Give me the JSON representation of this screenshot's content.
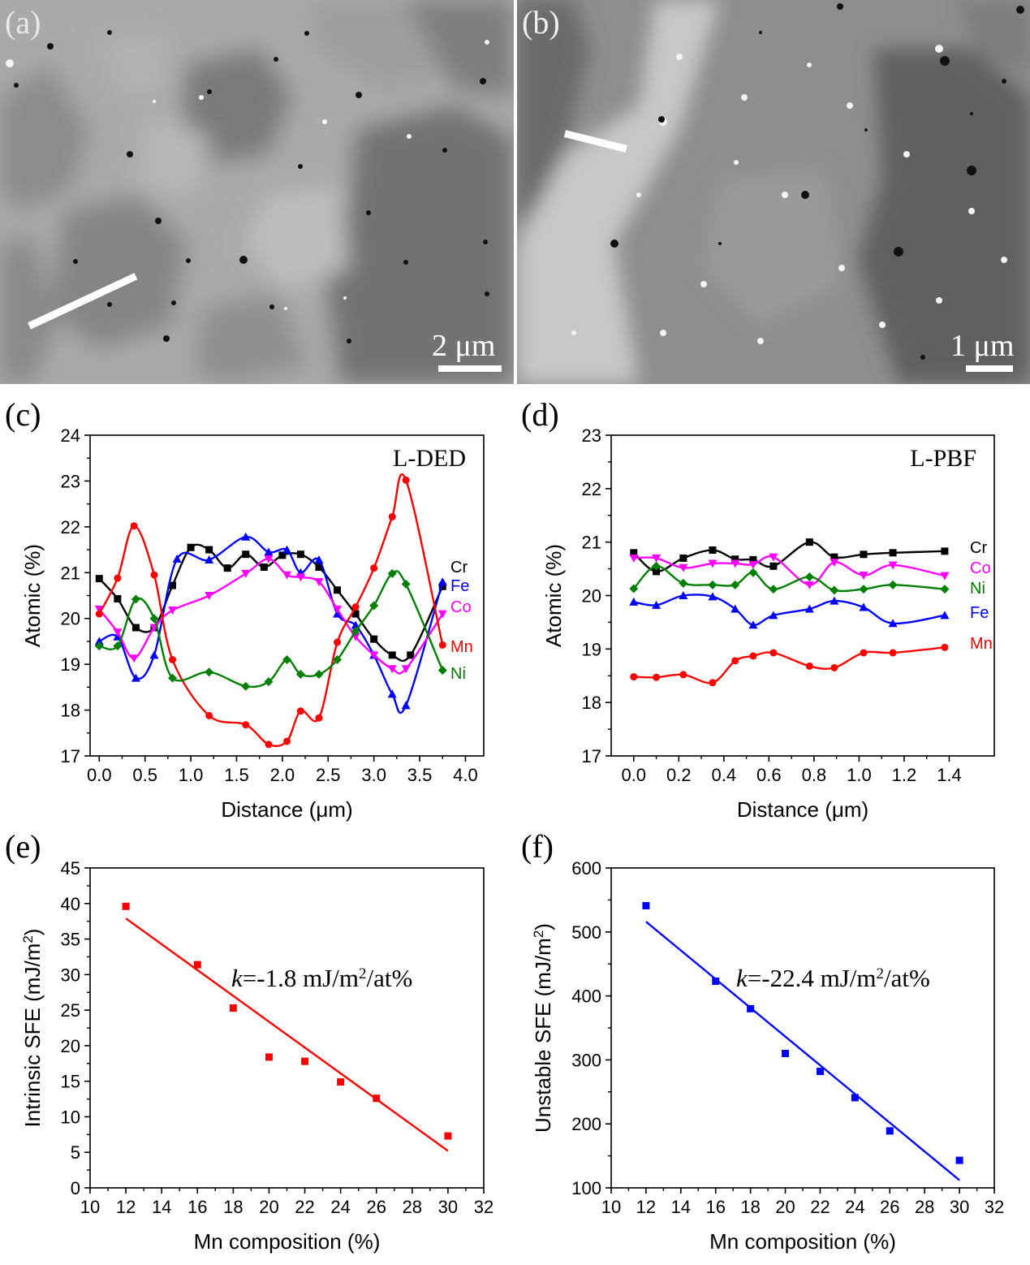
{
  "panels": {
    "a": {
      "letter": "(a)",
      "scale_label": "2 μm"
    },
    "b": {
      "letter": "(b)",
      "scale_label": "1 μm"
    },
    "c": {
      "letter": "(c)"
    },
    "d": {
      "letter": "(d)"
    },
    "e": {
      "letter": "(e)"
    },
    "f": {
      "letter": "(f)"
    }
  },
  "colors": {
    "Cr": "#000000",
    "Fe": "#0000ff",
    "Co": "#ff00ff",
    "Mn": "#ff0000",
    "Ni": "#008000",
    "e_series": "#ff0000",
    "f_series": "#0000ff"
  },
  "chart_data": [
    {
      "id": "c",
      "type": "line",
      "annotation": "L-DED",
      "xlabel": "Distance (μm)",
      "ylabel": "Atomic (%)",
      "xlim": [
        -0.1,
        4.2
      ],
      "ylim": [
        17,
        24
      ],
      "xticks": [
        "0.0",
        "0.5",
        "1.0",
        "1.5",
        "2.0",
        "2.5",
        "3.0",
        "3.5",
        "4.0"
      ],
      "yticks": [
        "17",
        "18",
        "19",
        "20",
        "21",
        "22",
        "23",
        "24"
      ],
      "grid": false,
      "legend": "right-side labels",
      "series": [
        {
          "name": "Cr",
          "marker": "square",
          "x": [
            0,
            0.2,
            0.4,
            0.6,
            0.8,
            1.0,
            1.2,
            1.4,
            1.6,
            1.8,
            2.0,
            2.2,
            2.4,
            2.6,
            2.8,
            3.0,
            3.2,
            3.4,
            3.75
          ],
          "values": [
            20.87,
            20.43,
            19.8,
            19.8,
            20.72,
            21.55,
            21.5,
            21.1,
            21.4,
            21.12,
            21.38,
            21.4,
            21.12,
            20.62,
            20.1,
            19.55,
            19.2,
            19.2,
            20.7
          ]
        },
        {
          "name": "Fe",
          "marker": "triangle-up",
          "x": [
            0,
            0.2,
            0.4,
            0.6,
            0.85,
            1.2,
            1.6,
            1.85,
            2.05,
            2.2,
            2.4,
            2.6,
            2.8,
            3.0,
            3.2,
            3.35,
            3.75
          ],
          "values": [
            19.5,
            19.6,
            18.7,
            19.2,
            21.3,
            21.28,
            21.78,
            21.45,
            21.5,
            21.0,
            21.28,
            20.1,
            19.85,
            19.2,
            18.35,
            18.1,
            20.8
          ]
        },
        {
          "name": "Co",
          "marker": "triangle-down",
          "x": [
            0,
            0.2,
            0.38,
            0.6,
            0.8,
            1.2,
            1.6,
            1.85,
            2.05,
            2.2,
            2.4,
            2.6,
            2.8,
            3.0,
            3.2,
            3.35,
            3.75
          ],
          "values": [
            20.2,
            19.7,
            19.13,
            19.8,
            20.18,
            20.5,
            20.98,
            21.3,
            20.95,
            20.9,
            20.8,
            20.2,
            19.6,
            19.2,
            18.9,
            18.9,
            20.1
          ]
        },
        {
          "name": "Mn",
          "marker": "circle",
          "x": [
            0,
            0.2,
            0.38,
            0.6,
            0.8,
            1.2,
            1.6,
            1.85,
            2.05,
            2.2,
            2.4,
            2.6,
            2.8,
            3.0,
            3.2,
            3.35,
            3.75
          ],
          "values": [
            20.1,
            20.88,
            22.02,
            20.95,
            19.1,
            17.88,
            17.68,
            17.25,
            17.32,
            17.98,
            17.83,
            19.48,
            20.25,
            21.1,
            22.22,
            23.02,
            19.42
          ]
        },
        {
          "name": "Ni",
          "marker": "diamond",
          "x": [
            0,
            0.2,
            0.4,
            0.6,
            0.8,
            1.2,
            1.6,
            1.85,
            2.05,
            2.2,
            2.4,
            2.6,
            2.8,
            3.0,
            3.2,
            3.35,
            3.75
          ],
          "values": [
            19.4,
            19.4,
            20.42,
            20.0,
            18.7,
            18.83,
            18.52,
            18.62,
            19.1,
            18.78,
            18.78,
            19.1,
            19.72,
            20.28,
            20.98,
            20.75,
            18.87
          ]
        }
      ]
    },
    {
      "id": "d",
      "type": "line",
      "annotation": "L-PBF",
      "xlabel": "Distance (μm)",
      "ylabel": "Atomic (%)",
      "xlim": [
        -0.1,
        1.6
      ],
      "ylim": [
        17,
        23
      ],
      "xticks": [
        "0.0",
        "0.2",
        "0.4",
        "0.6",
        "0.8",
        "1.0",
        "1.2",
        "1.4"
      ],
      "yticks": [
        "17",
        "18",
        "19",
        "20",
        "21",
        "22",
        "23"
      ],
      "grid": false,
      "legend": "right-side labels",
      "series": [
        {
          "name": "Cr",
          "marker": "square",
          "x": [
            0,
            0.1,
            0.22,
            0.35,
            0.45,
            0.53,
            0.62,
            0.78,
            0.89,
            1.02,
            1.15,
            1.38
          ],
          "values": [
            20.8,
            20.45,
            20.7,
            20.85,
            20.68,
            20.67,
            20.55,
            21.0,
            20.72,
            20.77,
            20.8,
            20.83
          ]
        },
        {
          "name": "Co",
          "marker": "triangle-down",
          "x": [
            0,
            0.1,
            0.22,
            0.35,
            0.45,
            0.53,
            0.62,
            0.78,
            0.89,
            1.02,
            1.15,
            1.38
          ],
          "values": [
            20.7,
            20.7,
            20.52,
            20.6,
            20.6,
            20.58,
            20.72,
            20.2,
            20.62,
            20.38,
            20.57,
            20.37
          ]
        },
        {
          "name": "Ni",
          "marker": "diamond",
          "x": [
            0,
            0.1,
            0.22,
            0.35,
            0.45,
            0.53,
            0.62,
            0.78,
            0.89,
            1.02,
            1.15,
            1.38
          ],
          "values": [
            20.13,
            20.55,
            20.23,
            20.2,
            20.2,
            20.43,
            20.12,
            20.35,
            20.1,
            20.12,
            20.2,
            20.12
          ]
        },
        {
          "name": "Fe",
          "marker": "triangle-up",
          "x": [
            0,
            0.1,
            0.22,
            0.35,
            0.45,
            0.53,
            0.62,
            0.78,
            0.89,
            1.02,
            1.15,
            1.38
          ],
          "values": [
            19.88,
            19.82,
            20.0,
            19.98,
            19.75,
            19.45,
            19.63,
            19.75,
            19.9,
            19.78,
            19.48,
            19.63
          ]
        },
        {
          "name": "Mn",
          "marker": "circle",
          "x": [
            0,
            0.1,
            0.22,
            0.35,
            0.45,
            0.53,
            0.62,
            0.78,
            0.89,
            1.02,
            1.15,
            1.38
          ],
          "values": [
            18.48,
            18.47,
            18.52,
            18.37,
            18.78,
            18.87,
            18.93,
            18.68,
            18.65,
            18.93,
            18.93,
            19.03
          ]
        }
      ]
    },
    {
      "id": "e",
      "type": "scatter",
      "xlabel": "Mn composition (%)",
      "ylabel_main": "Intrinsic SFE (mJ/m",
      "ylabel_sup": "2",
      "ylabel_end": ")",
      "xlim": [
        10,
        32
      ],
      "ylim": [
        0,
        45
      ],
      "xticks": [
        "10",
        "12",
        "14",
        "16",
        "18",
        "20",
        "22",
        "24",
        "26",
        "28",
        "30",
        "32"
      ],
      "yticks": [
        "0",
        "5",
        "10",
        "15",
        "20",
        "25",
        "30",
        "35",
        "40",
        "45"
      ],
      "grid": false,
      "x": [
        12,
        16,
        18,
        20,
        22,
        24,
        26,
        30
      ],
      "values": [
        39.6,
        31.4,
        25.3,
        18.4,
        17.8,
        14.9,
        12.6,
        7.3
      ],
      "fit": {
        "x": [
          12,
          30
        ],
        "values": [
          37.9,
          5.2
        ]
      },
      "annotation": {
        "italic": "k",
        "text": "=-1.8 mJ/m",
        "sup": "2",
        "end": "/at%"
      }
    },
    {
      "id": "f",
      "type": "scatter",
      "xlabel": "Mn composition (%)",
      "ylabel_main": "Unstable SFE (mJ/m",
      "ylabel_sup": "2",
      "ylabel_end": ")",
      "xlim": [
        10,
        32
      ],
      "ylim": [
        100,
        600
      ],
      "xticks": [
        "10",
        "12",
        "14",
        "16",
        "18",
        "20",
        "22",
        "24",
        "26",
        "28",
        "30",
        "32"
      ],
      "yticks": [
        "100",
        "200",
        "300",
        "400",
        "500",
        "600"
      ],
      "grid": false,
      "x": [
        12,
        16,
        18,
        20,
        22,
        24,
        26,
        30
      ],
      "values": [
        541,
        423,
        380,
        310,
        282,
        241,
        189,
        143
      ],
      "fit": {
        "x": [
          12,
          30
        ],
        "values": [
          516,
          112
        ]
      },
      "annotation": {
        "italic": "k",
        "text": "=-22.4 mJ/m",
        "sup": "2",
        "end": "/at%"
      }
    }
  ]
}
